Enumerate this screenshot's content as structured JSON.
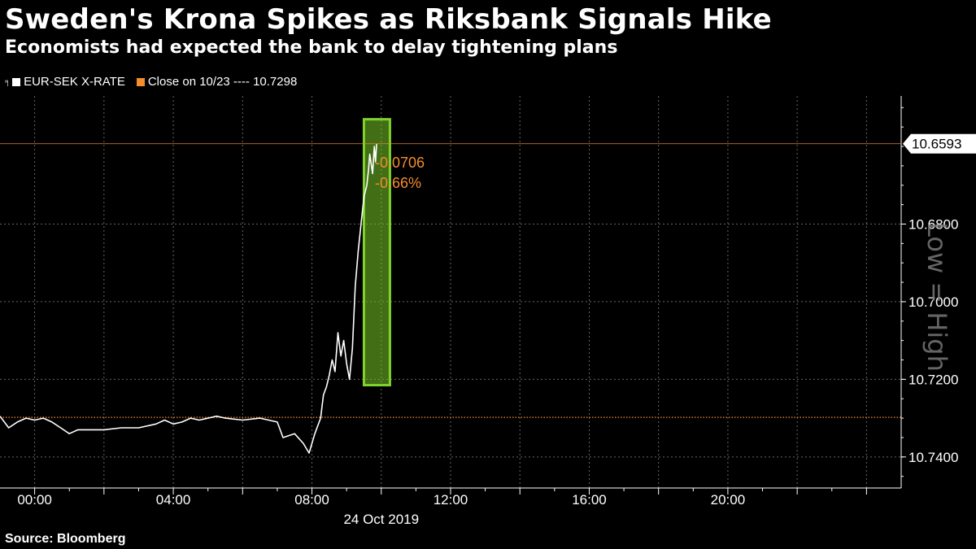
{
  "title": "Sweden's Krona Spikes as Riksbank Signals Hike",
  "subtitle": "Economists had expected the bank to delay tightening plans",
  "legend": {
    "series_label": "EUR-SEK X-RATE",
    "close_label": "Close on 10/23 ---- 10.7298"
  },
  "source": "Source: Bloomberg",
  "watermark": "Low = High",
  "annotations": {
    "change_abs": "-0.0706",
    "change_pct": "-0.66%"
  },
  "colors": {
    "series": "#ffffff",
    "reference": "#f58d2d",
    "highlight": "#7fd32c",
    "grid": "#666666"
  },
  "chart_data": {
    "type": "line",
    "title": "Sweden's Krona Spikes as Riksbank Signals Hike",
    "subtitle": "Economists had expected the bank to delay tightening plans",
    "xlabel": "24 Oct 2019",
    "ylabel": "",
    "y_inverted": true,
    "ylim": [
      10.748,
      10.647
    ],
    "xlim": [
      "23:00",
      "25:00"
    ],
    "x_ticks": [
      "00:00",
      "04:00",
      "08:00",
      "12:00",
      "16:00",
      "20:00"
    ],
    "y_ticks": [
      "10.6800",
      "10.7000",
      "10.7200",
      "10.7400"
    ],
    "grid": true,
    "legend_position": "top-left",
    "current_value_label": "10.6593",
    "reference_line": {
      "name": "Close on 10/23",
      "value": 10.7298
    },
    "series": [
      {
        "name": "EUR-SEK X-RATE",
        "x": [
          "23:00",
          "23:15",
          "23:30",
          "23:45",
          "00:00",
          "00:15",
          "00:30",
          "00:45",
          "01:00",
          "01:15",
          "01:30",
          "01:45",
          "02:00",
          "02:30",
          "03:00",
          "03:30",
          "03:45",
          "04:00",
          "04:15",
          "04:30",
          "04:45",
          "05:00",
          "05:15",
          "05:30",
          "06:00",
          "06:30",
          "07:00",
          "07:10",
          "07:30",
          "07:45",
          "07:55",
          "08:05",
          "08:15",
          "08:20",
          "08:25",
          "08:30",
          "08:35",
          "08:40",
          "08:45",
          "08:50",
          "08:55",
          "09:00",
          "09:05",
          "09:10",
          "09:15",
          "09:20",
          "09:25",
          "09:30",
          "09:35",
          "09:38",
          "09:40",
          "09:45",
          "09:48",
          "09:50",
          "09:52"
        ],
        "values": [
          10.7295,
          10.7325,
          10.731,
          10.73,
          10.7305,
          10.73,
          10.731,
          10.7325,
          10.734,
          10.733,
          10.733,
          10.733,
          10.733,
          10.7325,
          10.7325,
          10.7315,
          10.7305,
          10.7315,
          10.731,
          10.73,
          10.7305,
          10.73,
          10.7295,
          10.73,
          10.7305,
          10.73,
          10.731,
          10.735,
          10.734,
          10.7365,
          10.739,
          10.734,
          10.73,
          10.724,
          10.722,
          10.719,
          10.715,
          10.718,
          10.708,
          10.714,
          10.71,
          10.716,
          10.72,
          10.712,
          10.696,
          10.687,
          10.68,
          10.673,
          10.67,
          10.666,
          10.662,
          10.667,
          10.66,
          10.664,
          10.6593
        ]
      }
    ],
    "highlight_box": {
      "x_start": "09:30",
      "x_end": "10:15",
      "y_top": 10.653,
      "y_bottom": 10.7215
    },
    "annotations": [
      "-0.0706",
      "-0.66%"
    ]
  }
}
